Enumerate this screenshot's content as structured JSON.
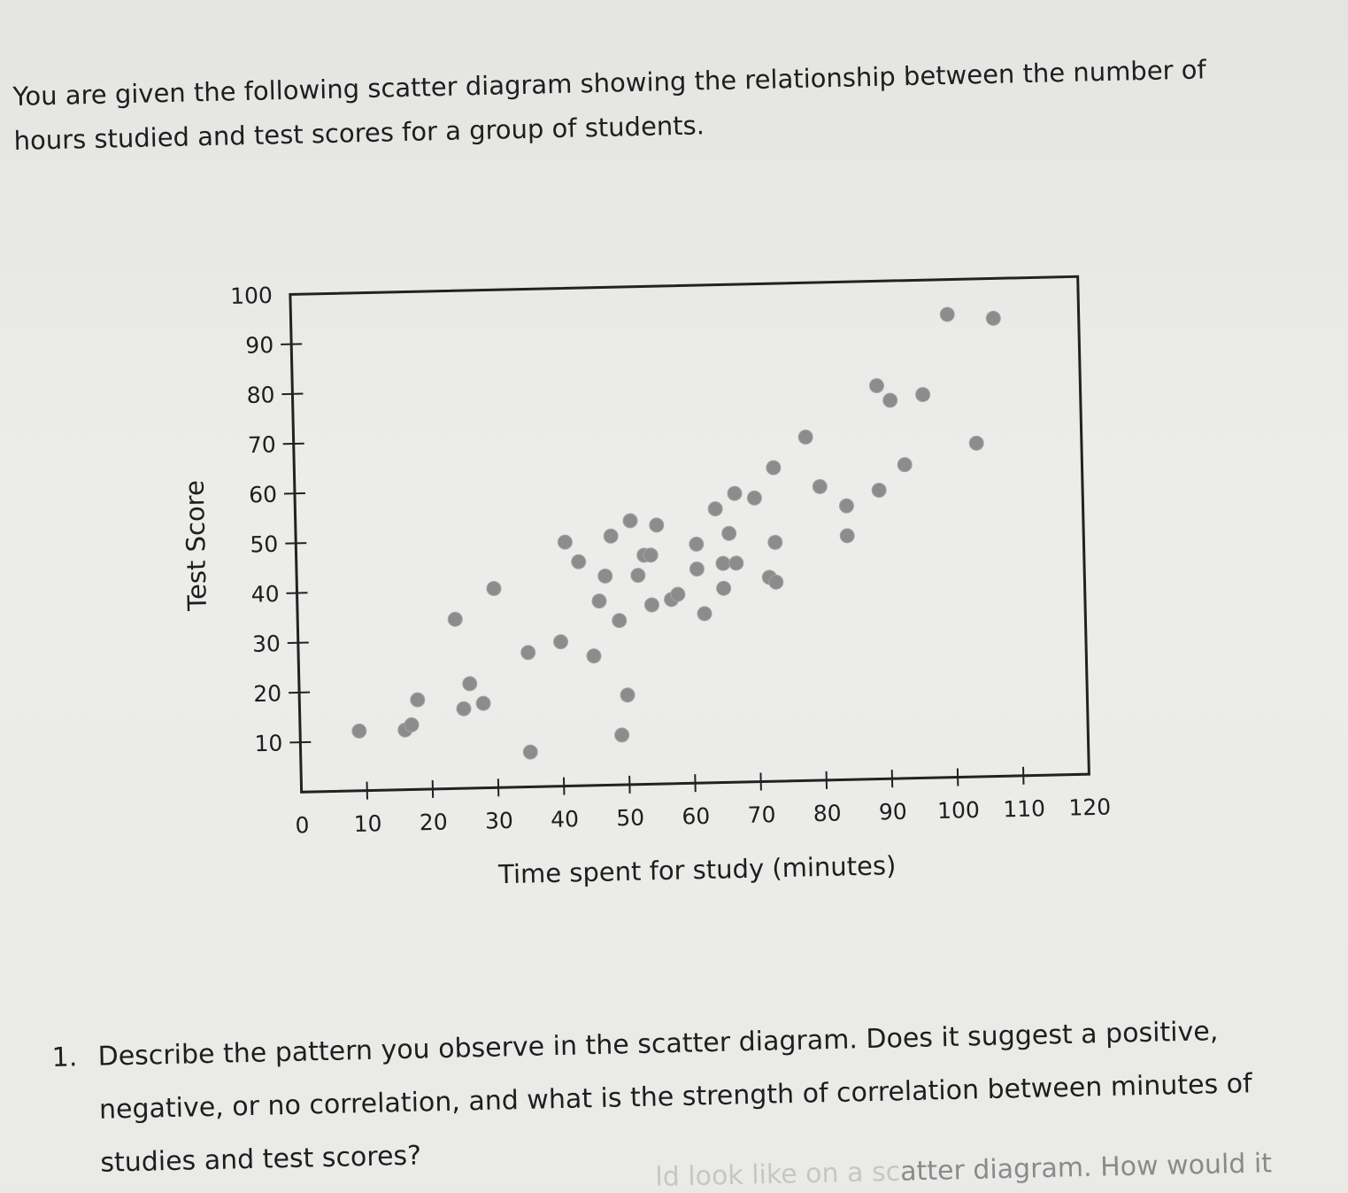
{
  "intro_text": "You are given the following scatter diagram showing the relationship between the number of hours studied and test scores for a group of students.",
  "chart_data": {
    "type": "scatter",
    "title": "",
    "xlabel": "Time spent for study (minutes)",
    "ylabel": "Test Score",
    "xlim": [
      0,
      120
    ],
    "ylim": [
      0,
      100
    ],
    "x_ticks": [
      0,
      10,
      20,
      30,
      40,
      50,
      60,
      70,
      80,
      90,
      100,
      110,
      120
    ],
    "y_ticks": [
      10,
      20,
      30,
      40,
      50,
      60,
      70,
      80,
      90,
      100
    ],
    "grid": false,
    "point_color": "#8c8c8c",
    "points": [
      {
        "x": 9,
        "y": 12
      },
      {
        "x": 16,
        "y": 12
      },
      {
        "x": 17,
        "y": 13
      },
      {
        "x": 18,
        "y": 18
      },
      {
        "x": 24,
        "y": 34
      },
      {
        "x": 25,
        "y": 16
      },
      {
        "x": 26,
        "y": 21
      },
      {
        "x": 28,
        "y": 17
      },
      {
        "x": 30,
        "y": 40
      },
      {
        "x": 35,
        "y": 7
      },
      {
        "x": 35,
        "y": 27
      },
      {
        "x": 40,
        "y": 29
      },
      {
        "x": 41,
        "y": 49
      },
      {
        "x": 43,
        "y": 45
      },
      {
        "x": 45,
        "y": 26
      },
      {
        "x": 46,
        "y": 37
      },
      {
        "x": 47,
        "y": 42
      },
      {
        "x": 48,
        "y": 50
      },
      {
        "x": 49,
        "y": 33
      },
      {
        "x": 49,
        "y": 10
      },
      {
        "x": 50,
        "y": 18
      },
      {
        "x": 51,
        "y": 53
      },
      {
        "x": 52,
        "y": 42
      },
      {
        "x": 53,
        "y": 46
      },
      {
        "x": 54,
        "y": 36
      },
      {
        "x": 54,
        "y": 46
      },
      {
        "x": 55,
        "y": 52
      },
      {
        "x": 57,
        "y": 37
      },
      {
        "x": 58,
        "y": 38
      },
      {
        "x": 61,
        "y": 43
      },
      {
        "x": 61,
        "y": 48
      },
      {
        "x": 62,
        "y": 34
      },
      {
        "x": 64,
        "y": 55
      },
      {
        "x": 65,
        "y": 44
      },
      {
        "x": 65,
        "y": 39
      },
      {
        "x": 66,
        "y": 50
      },
      {
        "x": 67,
        "y": 44
      },
      {
        "x": 67,
        "y": 58
      },
      {
        "x": 70,
        "y": 57
      },
      {
        "x": 72,
        "y": 41
      },
      {
        "x": 73,
        "y": 40
      },
      {
        "x": 73,
        "y": 48
      },
      {
        "x": 73,
        "y": 63
      },
      {
        "x": 78,
        "y": 69
      },
      {
        "x": 80,
        "y": 59
      },
      {
        "x": 84,
        "y": 55
      },
      {
        "x": 84,
        "y": 49
      },
      {
        "x": 89,
        "y": 79
      },
      {
        "x": 89,
        "y": 58
      },
      {
        "x": 91,
        "y": 76
      },
      {
        "x": 93,
        "y": 63
      },
      {
        "x": 96,
        "y": 77
      },
      {
        "x": 100,
        "y": 93
      },
      {
        "x": 104,
        "y": 67
      },
      {
        "x": 107,
        "y": 92
      }
    ]
  },
  "question": {
    "number": "1.",
    "text": "Describe the pattern you observe in the scatter diagram. Does it suggest a positive, negative, or no correlation, and what is the strength of correlation between minutes of studies and test scores?"
  },
  "cutoff_text": {
    "faint": "ld look like on a sc",
    "visible": "atter diagram. How would it"
  }
}
